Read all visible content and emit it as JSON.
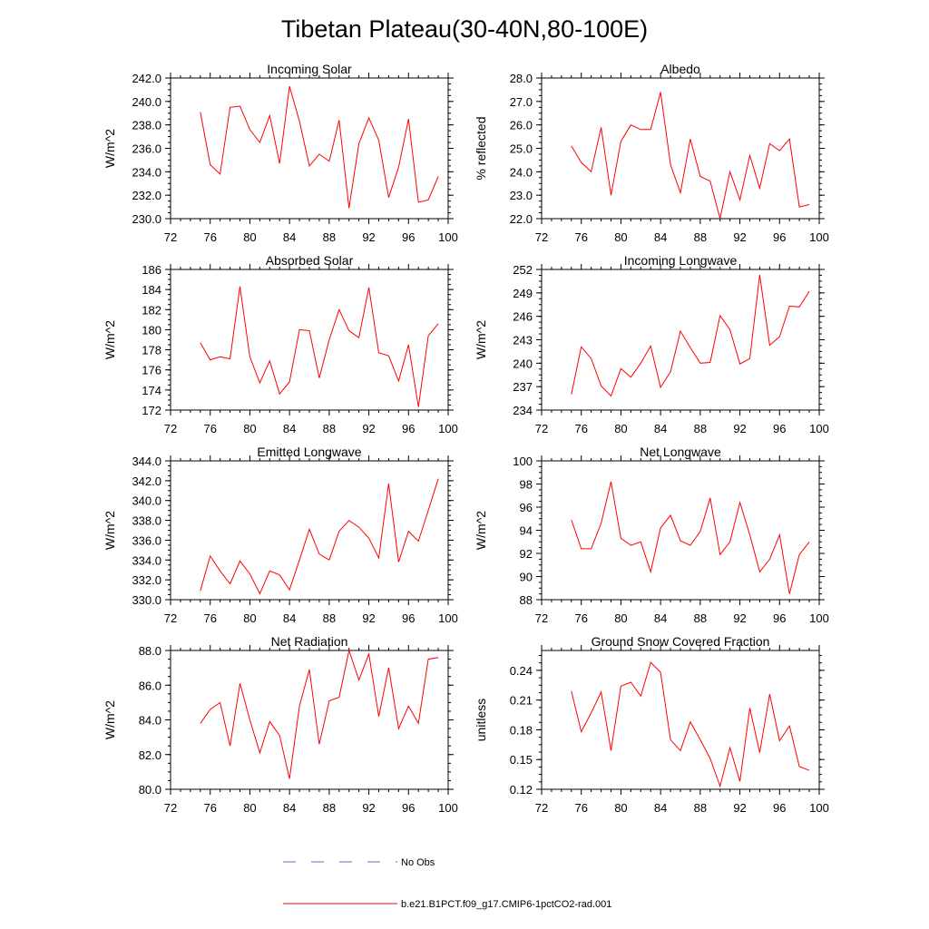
{
  "title": "Tibetan Plateau(30-40N,80-100E)",
  "legend": {
    "placement": "bottom-center",
    "entries": [
      {
        "label": "No Obs",
        "color": "#6666cc",
        "style": "dashed"
      },
      {
        "label": "b.e21.B1PCT.f09_g17.CMIP6-1pctCO2-rad.001",
        "color": "#ff0000",
        "style": "solid"
      }
    ]
  },
  "chart_data": [
    {
      "type": "line",
      "title": "Incoming Solar",
      "ylabel": "W/m^2",
      "xlim": [
        72,
        100
      ],
      "ylim": [
        230,
        242
      ],
      "xticks": [
        "72",
        "76",
        "80",
        "84",
        "88",
        "92",
        "96",
        "100"
      ],
      "yticks": [
        "230.0",
        "232.0",
        "234.0",
        "236.0",
        "238.0",
        "240.0",
        "242.0"
      ],
      "x": [
        75,
        76,
        77,
        78,
        79,
        80,
        81,
        82,
        83,
        84,
        85,
        86,
        87,
        88,
        89,
        90,
        91,
        92,
        93,
        94,
        95,
        96,
        97,
        98,
        99
      ],
      "series": [
        {
          "name": "b.e21.B1PCT.f09_g17.CMIP6-1pctCO2-rad.001",
          "color": "#ff0000",
          "values": [
            239.1,
            234.6,
            233.8,
            239.5,
            239.6,
            237.6,
            236.5,
            238.8,
            234.7,
            241.3,
            238.3,
            234.5,
            235.5,
            234.9,
            238.4,
            230.9,
            236.4,
            238.6,
            236.7,
            231.8,
            234.4,
            238.5,
            231.4,
            231.6,
            233.6
          ]
        }
      ]
    },
    {
      "type": "line",
      "title": "Albedo",
      "ylabel": "% reflected",
      "xlim": [
        72,
        100
      ],
      "ylim": [
        22,
        28
      ],
      "xticks": [
        "72",
        "76",
        "80",
        "84",
        "88",
        "92",
        "96",
        "100"
      ],
      "yticks": [
        "22.0",
        "23.0",
        "24.0",
        "25.0",
        "26.0",
        "27.0",
        "28.0"
      ],
      "x": [
        75,
        76,
        77,
        78,
        79,
        80,
        81,
        82,
        83,
        84,
        85,
        86,
        87,
        88,
        89,
        90,
        91,
        92,
        93,
        94,
        95,
        96,
        97,
        98,
        99
      ],
      "series": [
        {
          "name": "b.e21.B1PCT.f09_g17.CMIP6-1pctCO2-rad.001",
          "color": "#ff0000",
          "values": [
            25.1,
            24.4,
            24.0,
            25.9,
            23.0,
            25.3,
            26.0,
            25.8,
            25.8,
            27.4,
            24.3,
            23.1,
            25.4,
            23.8,
            23.6,
            22.0,
            24.0,
            22.8,
            24.7,
            23.3,
            25.2,
            24.9,
            25.4,
            22.5,
            22.6
          ]
        }
      ]
    },
    {
      "type": "line",
      "title": "Absorbed Solar",
      "ylabel": "W/m^2",
      "xlim": [
        72,
        100
      ],
      "ylim": [
        172,
        186
      ],
      "xticks": [
        "72",
        "76",
        "80",
        "84",
        "88",
        "92",
        "96",
        "100"
      ],
      "yticks": [
        "172",
        "174",
        "176",
        "178",
        "180",
        "182",
        "184",
        "186"
      ],
      "x": [
        75,
        76,
        77,
        78,
        79,
        80,
        81,
        82,
        83,
        84,
        85,
        86,
        87,
        88,
        89,
        90,
        91,
        92,
        93,
        94,
        95,
        96,
        97,
        98,
        99
      ],
      "series": [
        {
          "name": "b.e21.B1PCT.f09_g17.CMIP6-1pctCO2-rad.001",
          "color": "#ff0000",
          "values": [
            178.7,
            177.0,
            177.3,
            177.1,
            184.3,
            177.3,
            174.7,
            176.9,
            173.6,
            174.8,
            180.0,
            179.9,
            175.2,
            179.0,
            182.0,
            179.9,
            179.2,
            184.2,
            177.7,
            177.4,
            174.9,
            178.5,
            172.3,
            179.4,
            180.6
          ]
        }
      ]
    },
    {
      "type": "line",
      "title": "Incoming Longwave",
      "ylabel": "W/m^2",
      "xlim": [
        72,
        100
      ],
      "ylim": [
        234,
        252
      ],
      "xticks": [
        "72",
        "76",
        "80",
        "84",
        "88",
        "92",
        "96",
        "100"
      ],
      "yticks": [
        "234",
        "237",
        "240",
        "243",
        "246",
        "249",
        "252"
      ],
      "x": [
        75,
        76,
        77,
        78,
        79,
        80,
        81,
        82,
        83,
        84,
        85,
        86,
        87,
        88,
        89,
        90,
        91,
        92,
        93,
        94,
        95,
        96,
        97,
        98,
        99
      ],
      "series": [
        {
          "name": "b.e21.B1PCT.f09_g17.CMIP6-1pctCO2-rad.001",
          "color": "#ff0000",
          "values": [
            236.0,
            242.1,
            240.6,
            237.1,
            235.8,
            239.3,
            238.2,
            240.0,
            242.2,
            236.9,
            238.9,
            244.1,
            242.0,
            240.0,
            240.1,
            246.1,
            244.3,
            239.9,
            240.6,
            251.3,
            242.3,
            243.4,
            247.3,
            247.2,
            249.2
          ]
        }
      ]
    },
    {
      "type": "line",
      "title": "Emitted Longwave",
      "ylabel": "W/m^2",
      "xlim": [
        72,
        100
      ],
      "ylim": [
        330,
        344
      ],
      "xticks": [
        "72",
        "76",
        "80",
        "84",
        "88",
        "92",
        "96",
        "100"
      ],
      "yticks": [
        "330.0",
        "332.0",
        "334.0",
        "336.0",
        "338.0",
        "340.0",
        "342.0",
        "344.0"
      ],
      "x": [
        75,
        76,
        77,
        78,
        79,
        80,
        81,
        82,
        83,
        84,
        85,
        86,
        87,
        88,
        89,
        90,
        91,
        92,
        93,
        94,
        95,
        96,
        97,
        98,
        99
      ],
      "series": [
        {
          "name": "b.e21.B1PCT.f09_g17.CMIP6-1pctCO2-rad.001",
          "color": "#ff0000",
          "values": [
            330.9,
            334.4,
            332.9,
            331.6,
            333.9,
            332.6,
            330.6,
            332.9,
            332.5,
            331.0,
            334.0,
            337.1,
            334.6,
            334.0,
            336.9,
            338.0,
            337.3,
            336.2,
            334.2,
            341.7,
            333.8,
            336.9,
            335.9,
            339.0,
            342.2
          ]
        }
      ]
    },
    {
      "type": "line",
      "title": "Net Longwave",
      "ylabel": "W/m^2",
      "xlim": [
        72,
        100
      ],
      "ylim": [
        88,
        100
      ],
      "xticks": [
        "72",
        "76",
        "80",
        "84",
        "88",
        "92",
        "96",
        "100"
      ],
      "yticks": [
        "88",
        "90",
        "92",
        "94",
        "96",
        "98",
        "100"
      ],
      "x": [
        75,
        76,
        77,
        78,
        79,
        80,
        81,
        82,
        83,
        84,
        85,
        86,
        87,
        88,
        89,
        90,
        91,
        92,
        93,
        94,
        95,
        96,
        97,
        98,
        99
      ],
      "series": [
        {
          "name": "b.e21.B1PCT.f09_g17.CMIP6-1pctCO2-rad.001",
          "color": "#ff0000",
          "values": [
            94.9,
            92.4,
            92.4,
            94.6,
            98.2,
            93.3,
            92.7,
            93.0,
            90.4,
            94.2,
            95.3,
            93.1,
            92.7,
            93.9,
            96.8,
            91.9,
            93.0,
            96.4,
            93.6,
            90.4,
            91.5,
            93.6,
            88.5,
            91.9,
            93.0
          ]
        }
      ]
    },
    {
      "type": "line",
      "title": "Net Radiation",
      "ylabel": "W/m^2",
      "xlim": [
        72,
        100
      ],
      "ylim": [
        80,
        88
      ],
      "xticks": [
        "72",
        "76",
        "80",
        "84",
        "88",
        "92",
        "96",
        "100"
      ],
      "yticks": [
        "80.0",
        "82.0",
        "84.0",
        "86.0",
        "88.0"
      ],
      "x": [
        75,
        76,
        77,
        78,
        79,
        80,
        81,
        82,
        83,
        84,
        85,
        86,
        87,
        88,
        89,
        90,
        91,
        92,
        93,
        94,
        95,
        96,
        97,
        98,
        99
      ],
      "series": [
        {
          "name": "b.e21.B1PCT.f09_g17.CMIP6-1pctCO2-rad.001",
          "color": "#ff0000",
          "values": [
            83.8,
            84.6,
            85.0,
            82.5,
            86.1,
            84.0,
            82.1,
            83.9,
            83.1,
            80.6,
            84.8,
            86.9,
            82.6,
            85.1,
            85.3,
            88.0,
            86.3,
            87.8,
            84.2,
            87.0,
            83.5,
            84.8,
            83.8,
            87.5,
            87.6
          ]
        }
      ]
    },
    {
      "type": "line",
      "title": "Ground Snow Covered Fraction",
      "ylabel": "unitless",
      "xlim": [
        72,
        100
      ],
      "ylim": [
        0.12,
        0.26
      ],
      "xticks": [
        "72",
        "76",
        "80",
        "84",
        "88",
        "92",
        "96",
        "100"
      ],
      "yticks": [
        "0.12",
        "0.15",
        "0.18",
        "0.21",
        "0.24"
      ],
      "x": [
        75,
        76,
        77,
        78,
        79,
        80,
        81,
        82,
        83,
        84,
        85,
        86,
        87,
        88,
        89,
        90,
        91,
        92,
        93,
        94,
        95,
        96,
        97,
        98,
        99
      ],
      "series": [
        {
          "name": "b.e21.B1PCT.f09_g17.CMIP6-1pctCO2-rad.001",
          "color": "#ff0000",
          "values": [
            0.219,
            0.178,
            0.197,
            0.218,
            0.159,
            0.224,
            0.228,
            0.214,
            0.248,
            0.238,
            0.17,
            0.159,
            0.188,
            0.17,
            0.151,
            0.123,
            0.162,
            0.128,
            0.202,
            0.157,
            0.216,
            0.169,
            0.184,
            0.143,
            0.139
          ]
        }
      ]
    }
  ]
}
